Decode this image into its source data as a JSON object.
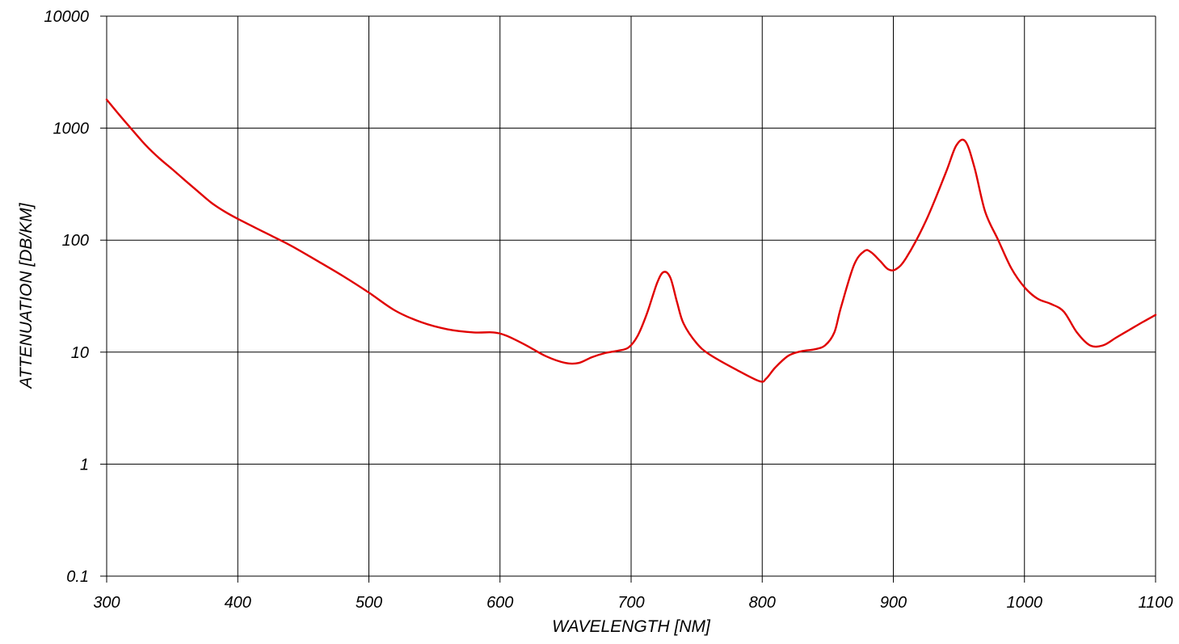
{
  "chart_data": {
    "type": "line",
    "xlabel": "WAVELENGTH [NM]",
    "ylabel": "ATTENUATION [DB/KM]",
    "xlim": [
      300,
      1100
    ],
    "ylim": [
      0.1,
      10000
    ],
    "yscale": "log",
    "grid": true,
    "x_ticks": [
      300,
      400,
      500,
      600,
      700,
      800,
      900,
      1000,
      1100
    ],
    "x_tick_labels": [
      "300",
      "400",
      "500",
      "600",
      "700",
      "800",
      "900",
      "1000",
      "1100"
    ],
    "y_ticks": [
      0.1,
      1,
      10,
      100,
      1000,
      10000
    ],
    "y_tick_labels": [
      "0.1",
      "1",
      "10",
      "100",
      "1000",
      "10000"
    ],
    "series": [
      {
        "color": "#e00000",
        "x": [
          300,
          310,
          320,
          330,
          340,
          350,
          360,
          370,
          380,
          390,
          400,
          420,
          440,
          460,
          480,
          500,
          520,
          540,
          560,
          580,
          595,
          605,
          620,
          635,
          650,
          660,
          670,
          680,
          690,
          698,
          705,
          712,
          720,
          725,
          730,
          735,
          740,
          750,
          760,
          780,
          798,
          803,
          810,
          820,
          830,
          840,
          848,
          855,
          860,
          870,
          878,
          883,
          890,
          896,
          902,
          910,
          925,
          940,
          948,
          955,
          962,
          970,
          980,
          990,
          1000,
          1010,
          1020,
          1030,
          1040,
          1050,
          1060,
          1070,
          1080,
          1090,
          1100
        ],
        "y": [
          1800,
          1300,
          950,
          700,
          540,
          430,
          340,
          270,
          215,
          180,
          155,
          118,
          90,
          66,
          48,
          34,
          23.5,
          18.5,
          16,
          15,
          15,
          14,
          11.5,
          9.2,
          8,
          8,
          9,
          9.8,
          10.3,
          11,
          14,
          22,
          42,
          52,
          46,
          28,
          18,
          12,
          9.5,
          7,
          5.5,
          5.8,
          7.3,
          9.3,
          10.2,
          10.6,
          11.5,
          15,
          25,
          60,
          80,
          78,
          65,
          55,
          55,
          70,
          150,
          400,
          700,
          760,
          440,
          180,
          100,
          56,
          38,
          30,
          27,
          23,
          15,
          11.5,
          11.5,
          13.5,
          15.8,
          18.5,
          21.5
        ]
      }
    ]
  }
}
